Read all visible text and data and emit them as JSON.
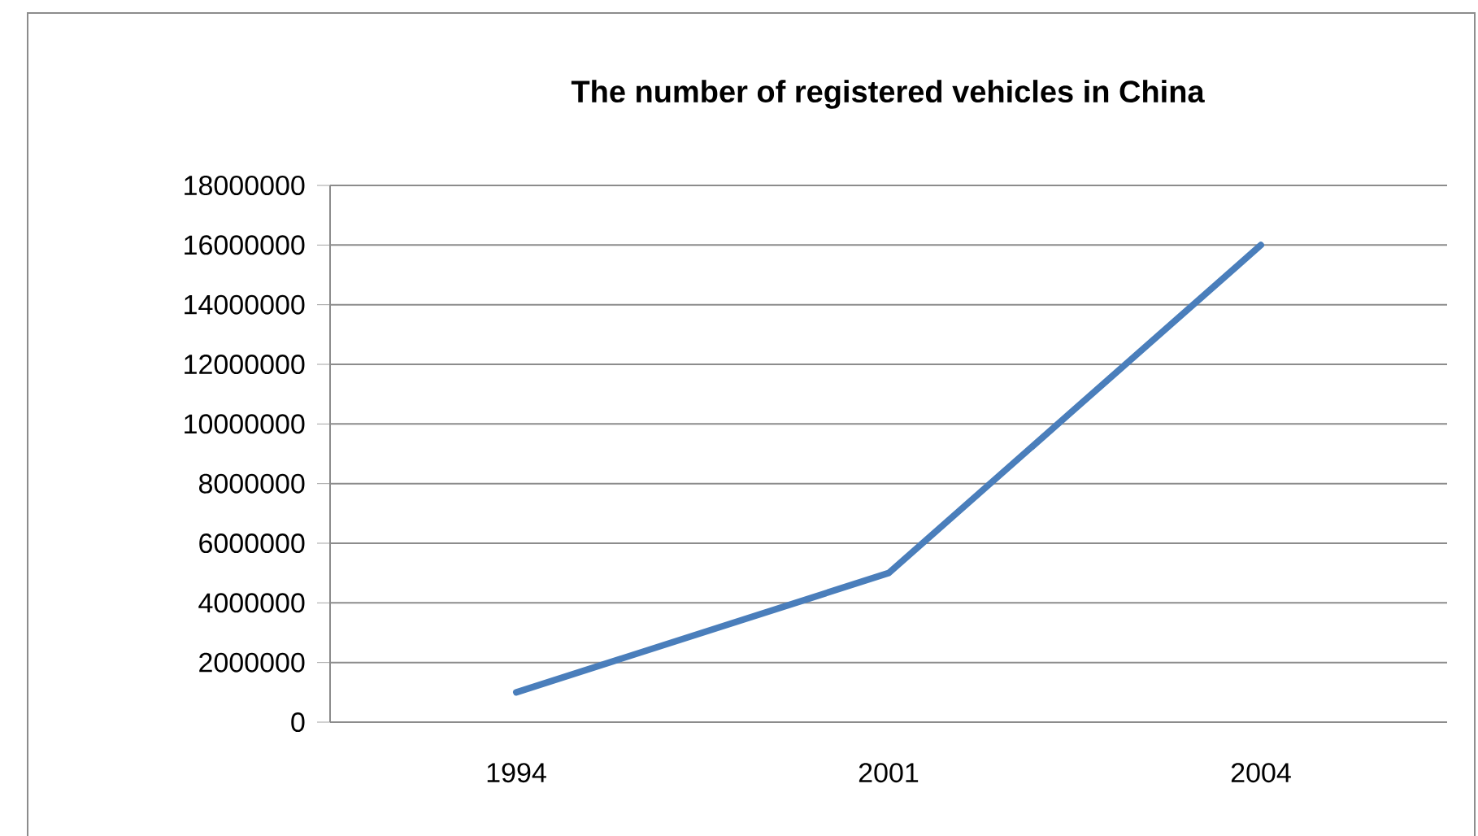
{
  "chart_data": {
    "type": "line",
    "title": "The number of registered vehicles  in China",
    "categories": [
      "1994",
      "2001",
      "2004"
    ],
    "series": [
      {
        "color": "#4a7ebb",
        "values": [
          1000000,
          5000000,
          16000000
        ]
      }
    ],
    "ylim": [
      0,
      18000000
    ],
    "yticks": [
      0,
      2000000,
      4000000,
      6000000,
      8000000,
      10000000,
      12000000,
      14000000,
      16000000,
      18000000
    ],
    "grid": "y"
  }
}
